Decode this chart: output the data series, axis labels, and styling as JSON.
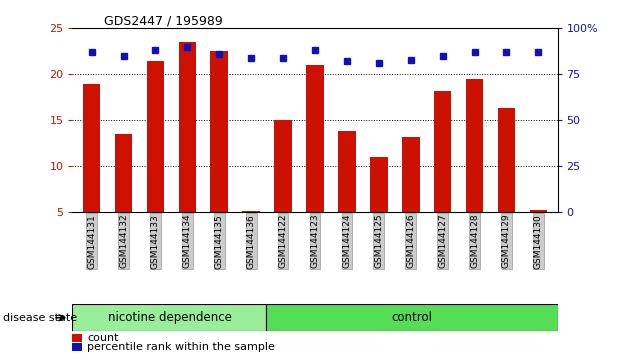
{
  "title": "GDS2447 / 195989",
  "samples": [
    "GSM144131",
    "GSM144132",
    "GSM144133",
    "GSM144134",
    "GSM144135",
    "GSM144136",
    "GSM144122",
    "GSM144123",
    "GSM144124",
    "GSM144125",
    "GSM144126",
    "GSM144127",
    "GSM144128",
    "GSM144129",
    "GSM144130"
  ],
  "counts": [
    19.0,
    13.5,
    21.5,
    23.5,
    22.5,
    5.2,
    15.0,
    21.0,
    13.8,
    11.0,
    13.2,
    18.2,
    19.5,
    16.3,
    5.3
  ],
  "percentiles": [
    87,
    85,
    88,
    90,
    86,
    84,
    84,
    88,
    82,
    81,
    83,
    85,
    87,
    87,
    87
  ],
  "ylim_left": [
    5,
    25
  ],
  "ylim_right": [
    0,
    100
  ],
  "yticks_left": [
    5,
    10,
    15,
    20,
    25
  ],
  "yticks_right": [
    0,
    25,
    50,
    75,
    100
  ],
  "bar_color": "#cc1100",
  "dot_color": "#1111bb",
  "group1_label": "nicotine dependence",
  "group2_label": "control",
  "group1_count": 6,
  "group2_count": 9,
  "group1_color": "#99ee99",
  "group2_color": "#55dd55",
  "xlabel_group": "disease state",
  "legend_count_label": "count",
  "legend_pct_label": "percentile rank within the sample",
  "bg_color": "#ffffff",
  "tick_bg_color": "#cccccc",
  "plot_area_bg": "#ffffff"
}
